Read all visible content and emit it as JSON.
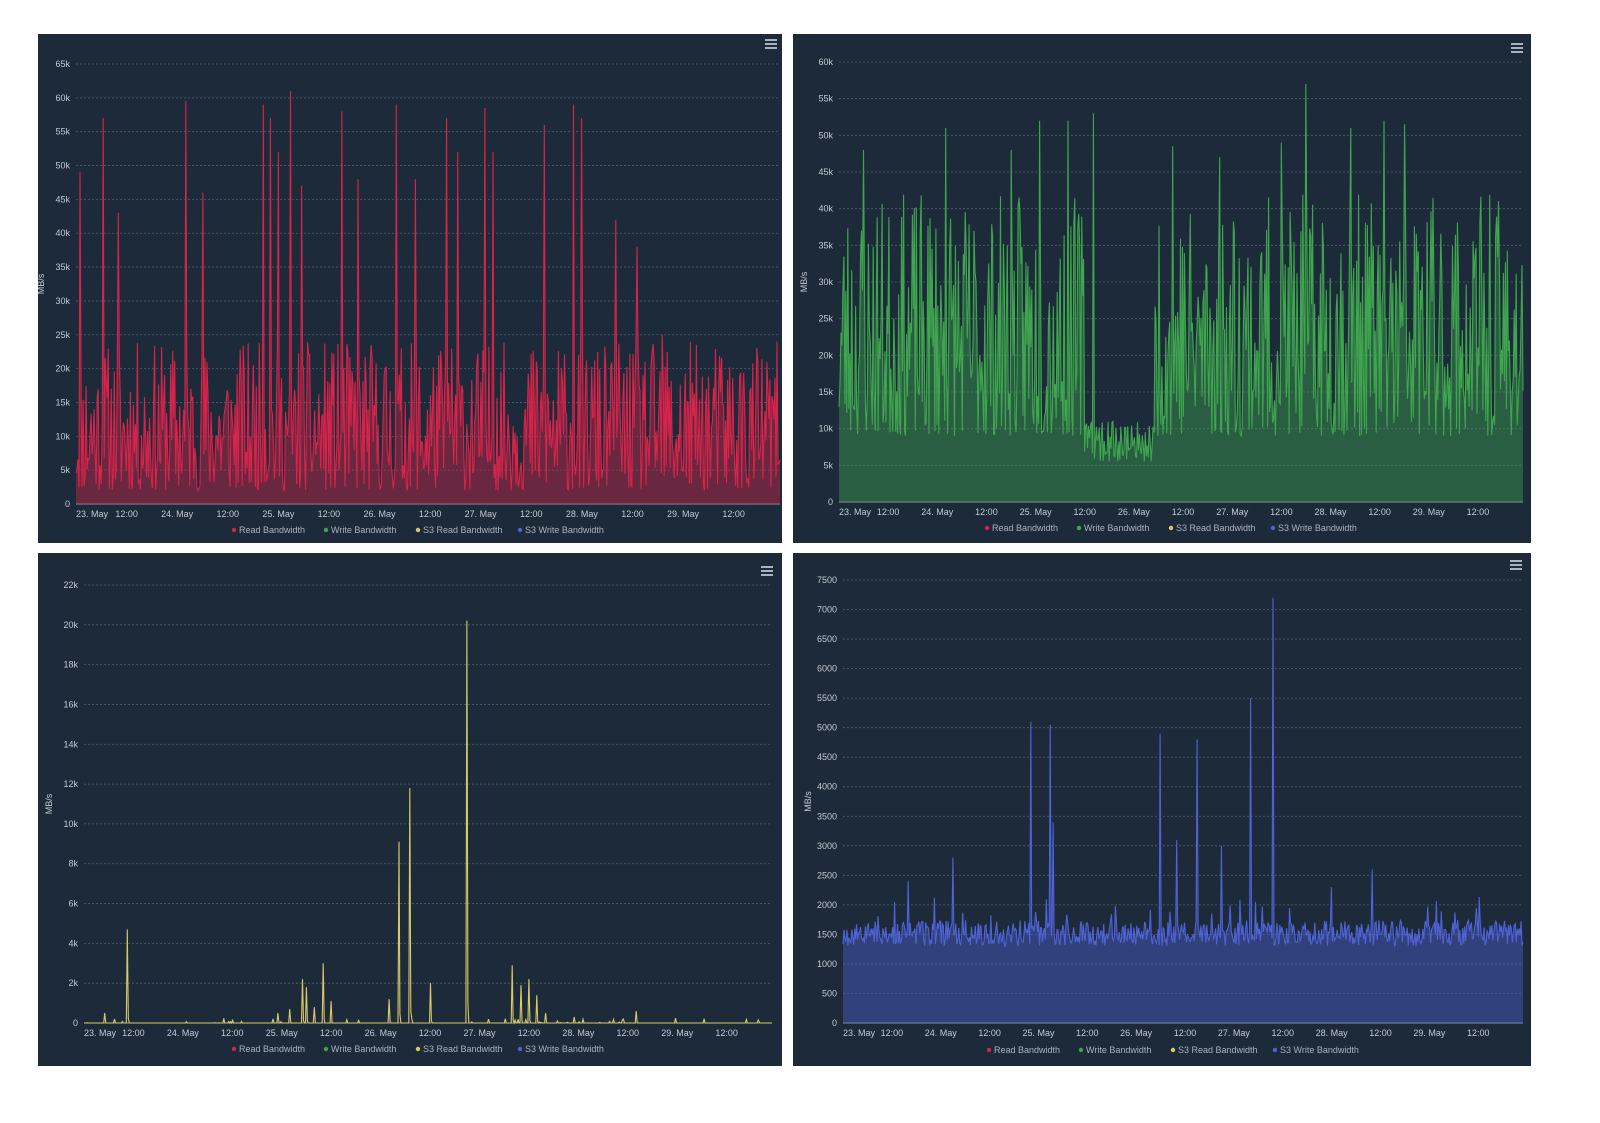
{
  "menu_icon": "hamburger-menu-icon",
  "chart_data": [
    {
      "type": "area",
      "series_name": "Read Bandwidth",
      "color": "#d6244b",
      "ylabel": "MB/s",
      "ylim": [
        0,
        65000
      ],
      "yticks": [
        0,
        5000,
        10000,
        15000,
        20000,
        25000,
        30000,
        35000,
        40000,
        45000,
        50000,
        55000,
        60000,
        65000
      ],
      "ytick_labels": [
        "0",
        "5k",
        "10k",
        "15k",
        "20k",
        "25k",
        "30k",
        "35k",
        "40k",
        "45k",
        "50k",
        "55k",
        "60k",
        "65k"
      ],
      "x_range": [
        "2021-05-23T00:00",
        "2021-05-29T23:00"
      ],
      "xticks": [
        "23. May",
        "12:00",
        "24. May",
        "12:00",
        "25. May",
        "12:00",
        "26. May",
        "12:00",
        "27. May",
        "12:00",
        "28. May",
        "12:00",
        "29. May",
        "12:00"
      ],
      "legend": [
        "Read Bandwidth",
        "Write Bandwidth",
        "S3 Read Bandwidth",
        "S3 Write Bandwidth"
      ],
      "legend_colors": [
        "#d6244b",
        "#3fa64f",
        "#d8c96a",
        "#4f62d6"
      ],
      "peaks": [
        [
          1.0,
          49000
        ],
        [
          6.5,
          57000
        ],
        [
          10.0,
          43000
        ],
        [
          26.0,
          59500
        ],
        [
          30.0,
          46000
        ],
        [
          44.5,
          59000
        ],
        [
          46.0,
          57000
        ],
        [
          48.0,
          52000
        ],
        [
          51.0,
          61000
        ],
        [
          53.5,
          47000
        ],
        [
          63.0,
          58000
        ],
        [
          67.0,
          48000
        ],
        [
          76.0,
          59000
        ],
        [
          80.5,
          48000
        ],
        [
          88.0,
          57000
        ],
        [
          90.5,
          52000
        ],
        [
          97.0,
          58500
        ],
        [
          99.0,
          52000
        ],
        [
          111.0,
          56000
        ],
        [
          118.0,
          59000
        ],
        [
          120.0,
          57000
        ],
        [
          128.0,
          42000
        ],
        [
          133.0,
          38000
        ],
        [
          139.0,
          25000
        ]
      ],
      "typical_range": [
        2000,
        24000
      ]
    },
    {
      "type": "area",
      "series_name": "Write Bandwidth",
      "color": "#3fa64f",
      "ylabel": "MB/s",
      "ylim": [
        0,
        60000
      ],
      "yticks": [
        0,
        5000,
        10000,
        15000,
        20000,
        25000,
        30000,
        35000,
        40000,
        45000,
        50000,
        55000,
        60000
      ],
      "ytick_labels": [
        "0",
        "5k",
        "10k",
        "15k",
        "20k",
        "25k",
        "30k",
        "35k",
        "40k",
        "45k",
        "50k",
        "55k",
        "60k"
      ],
      "x_range": [
        "2021-05-23T00:00",
        "2021-05-29T23:00"
      ],
      "xticks": [
        "23. May",
        "12:00",
        "24. May",
        "12:00",
        "25. May",
        "12:00",
        "26. May",
        "12:00",
        "27. May",
        "12:00",
        "28. May",
        "12:00",
        "29. May",
        "12:00"
      ],
      "legend": [
        "Read Bandwidth",
        "Write Bandwidth",
        "S3 Read Bandwidth",
        "S3 Write Bandwidth"
      ],
      "legend_colors": [
        "#d6244b",
        "#3fa64f",
        "#d8c96a",
        "#4f62d6"
      ],
      "peaks": [
        [
          6.0,
          48000
        ],
        [
          26.0,
          51000
        ],
        [
          42.0,
          48000
        ],
        [
          49.0,
          52000
        ],
        [
          56.0,
          52000
        ],
        [
          62.0,
          53000
        ],
        [
          81.5,
          48500
        ],
        [
          93.0,
          47000
        ],
        [
          108.0,
          49000
        ],
        [
          114.0,
          57000
        ],
        [
          125.0,
          51000
        ],
        [
          133.0,
          52000
        ],
        [
          138.0,
          51500
        ]
      ],
      "typical_range": [
        9000,
        42000
      ],
      "low_period": {
        "x_start": 60.0,
        "x_end": 77.0,
        "range": [
          5500,
          11000
        ]
      }
    },
    {
      "type": "line",
      "series_name": "S3 Read Bandwidth",
      "color": "#d8c96a",
      "ylabel": "MB/s",
      "ylim": [
        0,
        22000
      ],
      "yticks": [
        0,
        2000,
        4000,
        6000,
        8000,
        10000,
        12000,
        14000,
        16000,
        18000,
        20000,
        22000
      ],
      "ytick_labels": [
        "0",
        "2k",
        "4k",
        "6k",
        "8k",
        "10k",
        "12k",
        "14k",
        "16k",
        "18k",
        "20k",
        "22k"
      ],
      "x_range": [
        "2021-05-23T00:00",
        "2021-05-29T23:00"
      ],
      "xticks": [
        "23. May",
        "12:00",
        "24. May",
        "12:00",
        "25. May",
        "12:00",
        "26. May",
        "12:00",
        "27. May",
        "12:00",
        "28. May",
        "12:00",
        "29. May",
        "12:00"
      ],
      "legend": [
        "Read Bandwidth",
        "Write Bandwidth",
        "S3 Read Bandwidth",
        "S3 Write Bandwidth"
      ],
      "legend_colors": [
        "#d6244b",
        "#3fa64f",
        "#d8c96a",
        "#4f62d6"
      ],
      "spikes": [
        [
          5.0,
          500
        ],
        [
          10.5,
          4700
        ],
        [
          47.0,
          500
        ],
        [
          50.0,
          700
        ],
        [
          53.0,
          2200
        ],
        [
          54.0,
          1800
        ],
        [
          56.0,
          800
        ],
        [
          58.0,
          3000
        ],
        [
          60.0,
          1100
        ],
        [
          74.0,
          1200
        ],
        [
          76.5,
          9100
        ],
        [
          79.0,
          11800
        ],
        [
          84.0,
          2000
        ],
        [
          93.0,
          20200
        ],
        [
          104.0,
          2900
        ],
        [
          106.0,
          1900
        ],
        [
          108.0,
          2200
        ],
        [
          110.0,
          1400
        ],
        [
          112.0,
          500
        ],
        [
          119.0,
          300
        ],
        [
          131.0,
          200
        ],
        [
          134.0,
          600
        ]
      ]
    },
    {
      "type": "area",
      "series_name": "S3 Write Bandwidth",
      "color": "#4f62d6",
      "ylabel": "MB/s",
      "ylim": [
        0,
        7500
      ],
      "yticks": [
        0,
        500,
        1000,
        1500,
        2000,
        2500,
        3000,
        3500,
        4000,
        4500,
        5000,
        5500,
        6000,
        6500,
        7000,
        7500
      ],
      "ytick_labels": [
        "0",
        "500",
        "1000",
        "1500",
        "2000",
        "2500",
        "3000",
        "3500",
        "4000",
        "4500",
        "5000",
        "5500",
        "6000",
        "6500",
        "7000",
        "7500"
      ],
      "x_range": [
        "2021-05-23T00:00",
        "2021-05-29T23:00"
      ],
      "xticks": [
        "23. May",
        "12:00",
        "24. May",
        "12:00",
        "25. May",
        "12:00",
        "26. May",
        "12:00",
        "27. May",
        "12:00",
        "28. May",
        "12:00",
        "29. May",
        "12:00"
      ],
      "legend": [
        "Read Bandwidth",
        "Write Bandwidth",
        "S3 Read Bandwidth",
        "S3 Write Bandwidth"
      ],
      "legend_colors": [
        "#d6244b",
        "#3fa64f",
        "#d8c96a",
        "#4f62d6"
      ],
      "peaks": [
        [
          16.0,
          2400
        ],
        [
          27.0,
          2800
        ],
        [
          46.0,
          5100
        ],
        [
          51.0,
          5050
        ],
        [
          51.5,
          3400
        ],
        [
          78.0,
          4900
        ],
        [
          82.0,
          3100
        ],
        [
          87.0,
          4800
        ],
        [
          93.0,
          3000
        ],
        [
          100.0,
          5500
        ],
        [
          105.5,
          7200
        ],
        [
          120.0,
          2300
        ],
        [
          130.0,
          2600
        ]
      ],
      "typical_range": [
        1100,
        1900
      ]
    }
  ]
}
